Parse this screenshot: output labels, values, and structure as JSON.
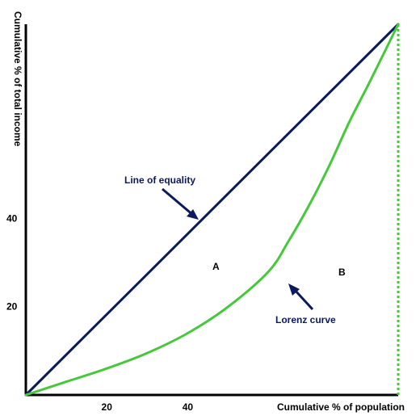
{
  "chart_data": {
    "type": "line",
    "title": "",
    "xlabel": "Cumulative % of population",
    "ylabel": "Cumulative % of total income",
    "xlim": [
      0,
      92
    ],
    "ylim": [
      0,
      84
    ],
    "x_ticks": [
      {
        "value": 20,
        "label": "20"
      },
      {
        "value": 40,
        "label": "40"
      }
    ],
    "y_ticks": [
      {
        "value": 20,
        "label": "20"
      },
      {
        "value": 40,
        "label": "40"
      }
    ],
    "series": [
      {
        "name": "Line of equality",
        "color": "#0b1a5c",
        "points": [
          [
            0,
            0
          ],
          [
            92,
            84
          ]
        ]
      },
      {
        "name": "Lorenz curve",
        "color": "#46c83a",
        "points": [
          [
            0,
            0
          ],
          [
            10,
            3
          ],
          [
            20,
            6
          ],
          [
            30,
            9.5
          ],
          [
            40,
            14
          ],
          [
            50,
            20
          ],
          [
            60,
            28
          ],
          [
            65,
            35
          ],
          [
            70,
            43
          ],
          [
            75,
            52
          ],
          [
            80,
            62
          ],
          [
            85,
            71
          ],
          [
            92,
            84
          ]
        ]
      }
    ],
    "reference_line": {
      "color": "#46c83a",
      "x": 92,
      "style": "dotted"
    },
    "annotations": [
      {
        "text": "Line of equality",
        "color": "#0b1a5c"
      },
      {
        "text": "Lorenz curve",
        "color": "#0b1a5c"
      },
      {
        "text": "A",
        "color": "#000000"
      },
      {
        "text": "B",
        "color": "#000000"
      }
    ],
    "grid": false,
    "legend": "none"
  }
}
